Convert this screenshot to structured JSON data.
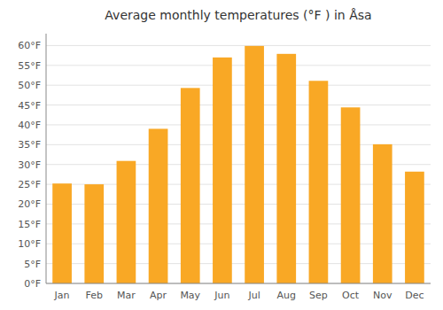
{
  "chart_data": {
    "type": "bar",
    "title": "Average monthly temperatures (°F ) in Åsa",
    "categories": [
      "Jan",
      "Feb",
      "Mar",
      "Apr",
      "May",
      "Jun",
      "Jul",
      "Aug",
      "Sep",
      "Oct",
      "Nov",
      "Dec"
    ],
    "values": [
      25.2,
      25.0,
      30.9,
      39.0,
      49.3,
      57.0,
      59.9,
      57.9,
      51.1,
      44.4,
      35.1,
      28.2
    ],
    "color": "#F9A825",
    "ylim": [
      0,
      63
    ],
    "yticks": [
      {
        "value": 0,
        "label": "0°F"
      },
      {
        "value": 5,
        "label": "5°F"
      },
      {
        "value": 10,
        "label": "10°F"
      },
      {
        "value": 15,
        "label": "15°F"
      },
      {
        "value": 20,
        "label": "20°F"
      },
      {
        "value": 25,
        "label": "25°F"
      },
      {
        "value": 30,
        "label": "30°F"
      },
      {
        "value": 35,
        "label": "35°F"
      },
      {
        "value": 40,
        "label": "40°F"
      },
      {
        "value": 45,
        "label": "45°F"
      },
      {
        "value": 50,
        "label": "50°F"
      },
      {
        "value": 55,
        "label": "55°F"
      },
      {
        "value": 60,
        "label": "60°F"
      }
    ],
    "grid": true
  }
}
